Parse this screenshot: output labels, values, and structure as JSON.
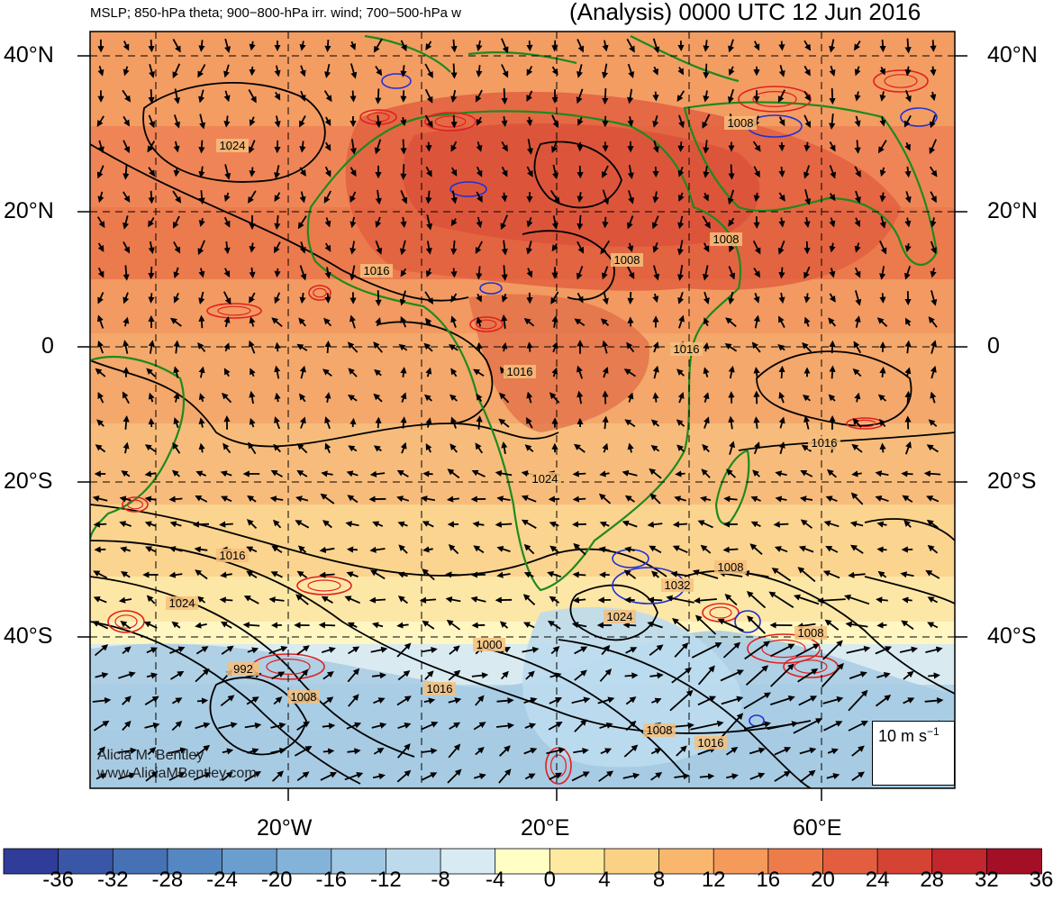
{
  "header": {
    "fields": "MSLP; 850-hPa theta; 900−800-hPa irr. wind; 700−500-hPa w",
    "valid": "(Analysis) 0000 UTC 12 Jun 2016"
  },
  "lat_labels": [
    "40°N",
    "20°N",
    "0",
    "20°S",
    "40°S"
  ],
  "lon_labels": [
    "20°W",
    "20°E",
    "60°E"
  ],
  "colorbar": {
    "ticks": [
      "-36",
      "-32",
      "-28",
      "-24",
      "-20",
      "-16",
      "-12",
      "-8",
      "-4",
      "0",
      "4",
      "8",
      "12",
      "16",
      "20",
      "24",
      "28",
      "32",
      "36"
    ],
    "colors": [
      "#2f3c99",
      "#3a56a6",
      "#4671b4",
      "#5588c2",
      "#6a9ecf",
      "#84b3da",
      "#a0c7e4",
      "#bcdaec",
      "#d8ebf3",
      "#fffec4",
      "#fde9a0",
      "#fbd185",
      "#f9b76e",
      "#f59a5a",
      "#ee7c4a",
      "#e35e3e",
      "#d44334",
      "#c2272d",
      "#a50f26"
    ]
  },
  "isobar_labels": [
    "1024",
    "1016",
    "1008",
    "1008",
    "1016",
    "1016",
    "1024",
    "1016",
    "1016",
    "1008",
    "1024",
    "1032",
    "1024",
    "1008",
    "1000",
    "992",
    "1008",
    "1016",
    "1008",
    "1016",
    "1008"
  ],
  "credit": {
    "name": "Alicia M. Bentley",
    "site": "www.AliciaMBentley.com"
  },
  "reference_vector": {
    "label": "10 m s",
    "superscript": "−1"
  }
}
